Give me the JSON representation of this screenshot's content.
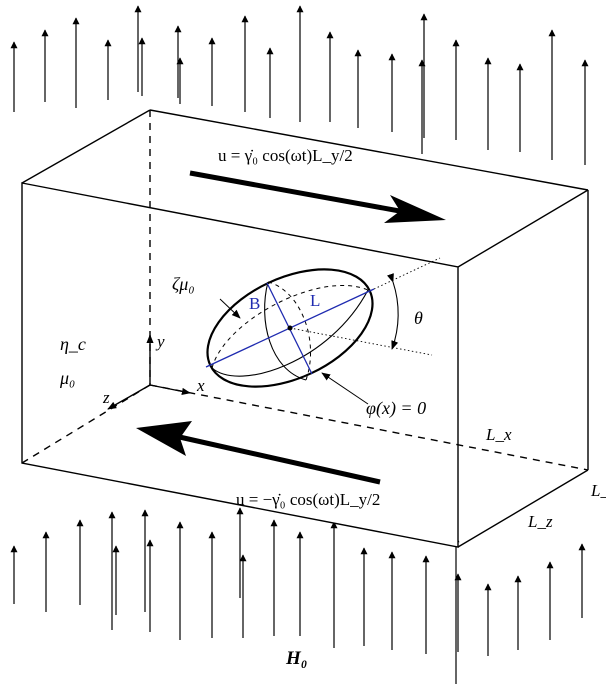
{
  "labels": {
    "top_velocity": "u = γ̇₀ cos(ωt)L_y/2",
    "bottom_velocity": "u = −γ̇₀ cos(ωt)L_y/2",
    "drop_viscosity": "ζμ₀",
    "B": "B",
    "L": "L",
    "theta": "θ",
    "eta_c": "η_c",
    "mu_0": "μ₀",
    "axis_y": "y",
    "axis_x": "x",
    "axis_z": "z",
    "level_set": "φ(x) = 0",
    "Lx": "L_x",
    "Ly": "L_y",
    "Lz": "L_z",
    "H0": "H₀"
  },
  "colors": {
    "line": "#000000",
    "ellipse_axes": "#1f2bb0"
  }
}
